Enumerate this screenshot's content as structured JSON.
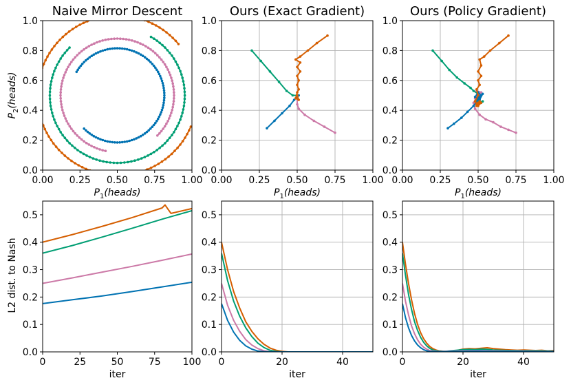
{
  "chart_data": [
    {
      "type": "line",
      "title": "Naive Mirror Descent",
      "xlabel": "P1(heads)",
      "ylabel": "P2(heads)",
      "xlim": [
        0,
        1
      ],
      "ylim": [
        0,
        1
      ],
      "xticks": [
        "0.00",
        "0.25",
        "0.50",
        "0.75",
        "1.00"
      ],
      "yticks": [
        "0.0",
        "0.2",
        "0.4",
        "0.6",
        "0.8",
        "1.0"
      ],
      "series": [
        {
          "name": "blue",
          "color": "#0072b2",
          "kind": "arc",
          "r": 0.315,
          "a0": 225,
          "a1": 510
        },
        {
          "name": "pink",
          "color": "#cc79a7",
          "kind": "arc",
          "r": 0.38,
          "a0": -45,
          "a1": 260
        },
        {
          "name": "green",
          "color": "#009e73",
          "kind": "arc",
          "r": 0.452,
          "a0": 135,
          "a1": 422
        },
        {
          "name": "orange",
          "color": "#d55e00",
          "kind": "arc",
          "r": 0.535,
          "a0": 40,
          "a1": 338
        }
      ]
    },
    {
      "type": "line",
      "title": "Ours (Exact Gradient)",
      "xlabel": "P1(heads)",
      "ylabel": "",
      "xlim": [
        0,
        1
      ],
      "ylim": [
        0,
        1
      ],
      "xticks": [
        "0.00",
        "0.25",
        "0.50",
        "0.75",
        "1.00"
      ],
      "yticks": [
        "0.0",
        "0.2",
        "0.4",
        "0.6",
        "0.8",
        "1.0"
      ],
      "series": [
        {
          "name": "green",
          "color": "#009e73",
          "points": [
            [
              0.2,
              0.8
            ],
            [
              0.26,
              0.73
            ],
            [
              0.32,
              0.66
            ],
            [
              0.38,
              0.59
            ],
            [
              0.43,
              0.53
            ],
            [
              0.47,
              0.5
            ],
            [
              0.5,
              0.5
            ]
          ]
        },
        {
          "name": "pink",
          "color": "#cc79a7",
          "points": [
            [
              0.75,
              0.25
            ],
            [
              0.68,
              0.29
            ],
            [
              0.61,
              0.33
            ],
            [
              0.55,
              0.37
            ],
            [
              0.51,
              0.41
            ],
            [
              0.5,
              0.44
            ],
            [
              0.5,
              0.5
            ]
          ]
        },
        {
          "name": "blue",
          "color": "#0072b2",
          "points": [
            [
              0.3,
              0.28
            ],
            [
              0.35,
              0.33
            ],
            [
              0.4,
              0.38
            ],
            [
              0.45,
              0.43
            ],
            [
              0.48,
              0.47
            ],
            [
              0.5,
              0.49
            ],
            [
              0.51,
              0.5
            ]
          ]
        },
        {
          "name": "orange",
          "color": "#d55e00",
          "points": [
            [
              0.7,
              0.9
            ],
            [
              0.63,
              0.85
            ],
            [
              0.57,
              0.8
            ],
            [
              0.52,
              0.76
            ],
            [
              0.49,
              0.74
            ],
            [
              0.52,
              0.72
            ],
            [
              0.5,
              0.69
            ],
            [
              0.52,
              0.66
            ],
            [
              0.5,
              0.63
            ],
            [
              0.51,
              0.6
            ],
            [
              0.5,
              0.57
            ],
            [
              0.51,
              0.54
            ],
            [
              0.5,
              0.52
            ],
            [
              0.49,
              0.48
            ],
            [
              0.51,
              0.47
            ],
            [
              0.5,
              0.5
            ]
          ]
        }
      ]
    },
    {
      "type": "line",
      "title": "Ours (Policy Gradient)",
      "xlabel": "P1(heads)",
      "ylabel": "",
      "xlim": [
        0,
        1
      ],
      "ylim": [
        0,
        1
      ],
      "xticks": [
        "0.00",
        "0.25",
        "0.50",
        "0.75",
        "1.00"
      ],
      "yticks": [
        "0.0",
        "0.2",
        "0.4",
        "0.6",
        "0.8",
        "1.0"
      ],
      "series": [
        {
          "name": "green",
          "color": "#009e73",
          "points": [
            [
              0.2,
              0.8
            ],
            [
              0.26,
              0.73
            ],
            [
              0.31,
              0.67
            ],
            [
              0.36,
              0.62
            ],
            [
              0.41,
              0.58
            ],
            [
              0.45,
              0.55
            ],
            [
              0.47,
              0.53
            ],
            [
              0.5,
              0.51
            ],
            [
              0.52,
              0.5
            ],
            [
              0.49,
              0.47
            ],
            [
              0.52,
              0.45
            ],
            [
              0.5,
              0.44
            ],
            [
              0.53,
              0.46
            ],
            [
              0.5,
              0.45
            ]
          ]
        },
        {
          "name": "pink",
          "color": "#cc79a7",
          "points": [
            [
              0.75,
              0.25
            ],
            [
              0.7,
              0.27
            ],
            [
              0.65,
              0.29
            ],
            [
              0.6,
              0.32
            ],
            [
              0.55,
              0.34
            ],
            [
              0.51,
              0.37
            ],
            [
              0.48,
              0.41
            ],
            [
              0.47,
              0.45
            ],
            [
              0.49,
              0.49
            ],
            [
              0.52,
              0.52
            ],
            [
              0.49,
              0.53
            ],
            [
              0.51,
              0.5
            ],
            [
              0.48,
              0.48
            ],
            [
              0.5,
              0.5
            ]
          ]
        },
        {
          "name": "blue",
          "color": "#0072b2",
          "points": [
            [
              0.3,
              0.28
            ],
            [
              0.34,
              0.31
            ],
            [
              0.39,
              0.35
            ],
            [
              0.43,
              0.39
            ],
            [
              0.47,
              0.43
            ],
            [
              0.5,
              0.47
            ],
            [
              0.52,
              0.5
            ],
            [
              0.5,
              0.52
            ],
            [
              0.48,
              0.49
            ],
            [
              0.51,
              0.47
            ],
            [
              0.53,
              0.51
            ],
            [
              0.5,
              0.49
            ]
          ]
        },
        {
          "name": "orange",
          "color": "#d55e00",
          "points": [
            [
              0.7,
              0.9
            ],
            [
              0.64,
              0.85
            ],
            [
              0.58,
              0.8
            ],
            [
              0.54,
              0.76
            ],
            [
              0.51,
              0.74
            ],
            [
              0.52,
              0.7
            ],
            [
              0.5,
              0.66
            ],
            [
              0.52,
              0.63
            ],
            [
              0.5,
              0.6
            ],
            [
              0.51,
              0.57
            ],
            [
              0.49,
              0.54
            ],
            [
              0.5,
              0.5
            ],
            [
              0.48,
              0.46
            ],
            [
              0.5,
              0.43
            ],
            [
              0.52,
              0.45
            ],
            [
              0.49,
              0.44
            ],
            [
              0.51,
              0.46
            ],
            [
              0.49,
              0.43
            ],
            [
              0.5,
              0.45
            ]
          ]
        }
      ]
    },
    {
      "type": "line",
      "title": "",
      "xlabel": "iter",
      "ylabel": "L2 dist. to Nash",
      "xlim": [
        0,
        100
      ],
      "ylim": [
        0,
        0.55
      ],
      "xticks": [
        "0",
        "25",
        "50",
        "75",
        "100"
      ],
      "yticks": [
        "0.0",
        "0.1",
        "0.2",
        "0.3",
        "0.4",
        "0.5"
      ],
      "series": [
        {
          "name": "orange",
          "color": "#d55e00",
          "x": [
            0,
            20,
            40,
            60,
            80,
            82,
            84,
            86,
            100
          ],
          "y": [
            0.4,
            0.428,
            0.458,
            0.49,
            0.525,
            0.536,
            0.52,
            0.505,
            0.523
          ]
        },
        {
          "name": "green",
          "color": "#009e73",
          "x": [
            0,
            20,
            40,
            60,
            80,
            100
          ],
          "y": [
            0.36,
            0.388,
            0.419,
            0.451,
            0.484,
            0.515
          ]
        },
        {
          "name": "pink",
          "color": "#cc79a7",
          "x": [
            0,
            20,
            40,
            60,
            80,
            100
          ],
          "y": [
            0.25,
            0.27,
            0.291,
            0.312,
            0.334,
            0.357
          ]
        },
        {
          "name": "blue",
          "color": "#0072b2",
          "x": [
            0,
            20,
            40,
            60,
            80,
            100
          ],
          "y": [
            0.176,
            0.19,
            0.204,
            0.22,
            0.237,
            0.254
          ]
        }
      ]
    },
    {
      "type": "line",
      "title": "",
      "xlabel": "iter",
      "ylabel": "",
      "xlim": [
        0,
        50
      ],
      "ylim": [
        0,
        0.55
      ],
      "xticks": [
        "0",
        "20",
        "40"
      ],
      "yticks": [
        "0.0",
        "0.1",
        "0.2",
        "0.3",
        "0.4",
        "0.5"
      ],
      "series": [
        {
          "name": "orange",
          "color": "#d55e00",
          "x": [
            0,
            2,
            4,
            6,
            8,
            10,
            12,
            14,
            16,
            18,
            20,
            22,
            50
          ],
          "y": [
            0.4,
            0.3,
            0.22,
            0.16,
            0.11,
            0.075,
            0.048,
            0.028,
            0.014,
            0.006,
            0.002,
            0,
            0
          ]
        },
        {
          "name": "green",
          "color": "#009e73",
          "x": [
            0,
            2,
            4,
            6,
            8,
            10,
            12,
            14,
            16,
            18,
            20,
            50
          ],
          "y": [
            0.36,
            0.26,
            0.185,
            0.13,
            0.088,
            0.056,
            0.032,
            0.016,
            0.006,
            0.002,
            0,
            0
          ]
        },
        {
          "name": "pink",
          "color": "#cc79a7",
          "x": [
            0,
            2,
            4,
            6,
            8,
            10,
            12,
            14,
            16,
            18,
            50
          ],
          "y": [
            0.25,
            0.17,
            0.115,
            0.075,
            0.045,
            0.025,
            0.012,
            0.004,
            0.001,
            0,
            0
          ]
        },
        {
          "name": "blue",
          "color": "#0072b2",
          "x": [
            0,
            2,
            4,
            6,
            8,
            10,
            12,
            14,
            16,
            50
          ],
          "y": [
            0.176,
            0.115,
            0.072,
            0.042,
            0.022,
            0.01,
            0.003,
            0.001,
            0,
            0
          ]
        }
      ]
    },
    {
      "type": "line",
      "title": "",
      "xlabel": "iter",
      "ylabel": "",
      "xlim": [
        0,
        50
      ],
      "ylim": [
        0,
        0.55
      ],
      "xticks": [
        "0",
        "20",
        "40"
      ],
      "yticks": [
        "0.0",
        "0.1",
        "0.2",
        "0.3",
        "0.4",
        "0.5"
      ],
      "series": [
        {
          "name": "orange",
          "color": "#d55e00",
          "x": [
            0,
            1,
            2,
            3,
            4,
            5,
            6,
            7,
            8,
            9,
            10,
            11,
            12,
            14,
            16,
            18,
            20,
            22,
            24,
            26,
            28,
            30,
            32,
            34,
            36,
            38,
            40,
            42,
            44,
            46,
            48,
            50
          ],
          "y": [
            0.4,
            0.32,
            0.25,
            0.19,
            0.14,
            0.1,
            0.07,
            0.048,
            0.032,
            0.02,
            0.012,
            0.007,
            0.004,
            0.002,
            0.003,
            0.005,
            0.01,
            0.012,
            0.011,
            0.013,
            0.015,
            0.012,
            0.01,
            0.008,
            0.007,
            0.006,
            0.007,
            0.006,
            0.005,
            0.006,
            0.004,
            0.005
          ]
        },
        {
          "name": "green",
          "color": "#009e73",
          "x": [
            0,
            1,
            2,
            3,
            4,
            5,
            6,
            7,
            8,
            9,
            10,
            12,
            14,
            16,
            18,
            20,
            22,
            24,
            26,
            28,
            30,
            35,
            40,
            45,
            50
          ],
          "y": [
            0.36,
            0.28,
            0.21,
            0.155,
            0.11,
            0.078,
            0.053,
            0.035,
            0.022,
            0.013,
            0.007,
            0.003,
            0.002,
            0.004,
            0.006,
            0.008,
            0.009,
            0.008,
            0.01,
            0.009,
            0.007,
            0.005,
            0.004,
            0.004,
            0.003
          ]
        },
        {
          "name": "pink",
          "color": "#cc79a7",
          "x": [
            0,
            1,
            2,
            3,
            4,
            5,
            6,
            7,
            8,
            9,
            10,
            12,
            14,
            16,
            20,
            25,
            30,
            35,
            40,
            45,
            50
          ],
          "y": [
            0.25,
            0.185,
            0.135,
            0.095,
            0.066,
            0.044,
            0.028,
            0.017,
            0.01,
            0.005,
            0.003,
            0.002,
            0.002,
            0.003,
            0.004,
            0.005,
            0.004,
            0.003,
            0.003,
            0.002,
            0.002
          ]
        },
        {
          "name": "blue",
          "color": "#0072b2",
          "x": [
            0,
            1,
            2,
            3,
            4,
            5,
            6,
            7,
            8,
            9,
            10,
            12,
            14,
            16,
            20,
            25,
            30,
            35,
            40,
            45,
            50
          ],
          "y": [
            0.176,
            0.125,
            0.088,
            0.06,
            0.04,
            0.025,
            0.015,
            0.008,
            0.004,
            0.002,
            0.001,
            0.001,
            0.001,
            0.002,
            0.002,
            0.003,
            0.002,
            0.002,
            0.002,
            0.001,
            0.001
          ]
        }
      ]
    }
  ]
}
